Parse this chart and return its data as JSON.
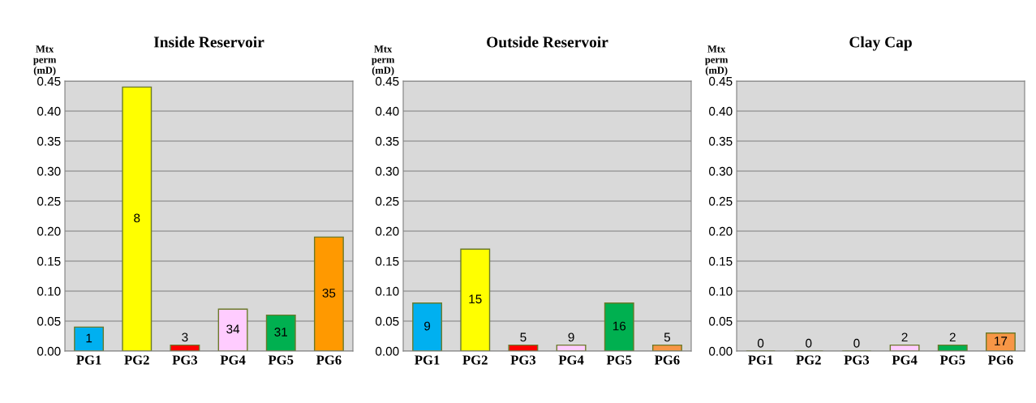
{
  "chart_data": [
    {
      "type": "bar",
      "title": "Inside Reservoir",
      "ylabel": "Mtx\nperm\n(mD)",
      "categories": [
        "PG1",
        "PG2",
        "PG3",
        "PG4",
        "PG5",
        "PG6"
      ],
      "values": [
        0.04,
        0.44,
        0.01,
        0.07,
        0.06,
        0.19
      ],
      "colors": [
        "#00b0f0",
        "#ffff00",
        "#ff0000",
        "#ffccff",
        "#00b050",
        "#ff9900"
      ],
      "annotations": [
        {
          "text": "1",
          "x": "PG1",
          "y": 0.04
        },
        "8",
        {
          "text": "3",
          "x": "PG3",
          "y": 0.01
        },
        {
          "text": "34",
          "x": "PG4",
          "y": 0.07
        },
        {
          "text": "31",
          "x": "PG5",
          "y": 0.06
        },
        "35"
      ],
      "ylim": [
        0,
        0.45
      ],
      "yticks": [
        {
          "value": 0,
          "label": "0.00"
        },
        {
          "value": 0.05,
          "label": "0.05"
        },
        {
          "value": 0.1,
          "label": "0.10"
        },
        {
          "value": 0.15,
          "label": "0.15"
        },
        {
          "value": 0.2,
          "label": "0.20"
        },
        {
          "value": 0.25,
          "label": "0.25"
        },
        {
          "value": 0.3,
          "label": "0.30"
        },
        {
          "value": 0.35,
          "label": "0.35"
        },
        {
          "value": 0.4,
          "label": "0.40"
        },
        {
          "value": 0.45,
          "label": "0.45"
        }
      ],
      "grid": "y"
    },
    {
      "type": "bar",
      "title": "Outside Reservoir",
      "ylabel": "Mtx\nperm\n(mD)",
      "categories": [
        "PG1",
        "PG2",
        "PG3",
        "PG4",
        "PG5",
        "PG6"
      ],
      "values": [
        0.08,
        0.17,
        0.01,
        0.01,
        0.08,
        0.01
      ],
      "colors": [
        "#00b0f0",
        "#ffff00",
        "#ff0000",
        "#ffccff",
        "#00b050",
        "#f79646"
      ],
      "annotations": [
        {
          "text": "9",
          "x": "PG1",
          "y": 0.08
        },
        "15",
        {
          "text": "5",
          "x": "PG3",
          "y": 0.01
        },
        {
          "text": "9",
          "x": "PG4",
          "y": 0.01
        },
        {
          "text": "16",
          "x": "PG5",
          "y": 0.08
        },
        {
          "text": "5",
          "x": "PG6",
          "y": 0.01
        }
      ],
      "ylim": [
        0,
        0.45
      ],
      "yticks": [
        {
          "value": 0,
          "label": "0.00"
        },
        {
          "value": 0.05,
          "label": "0.05"
        },
        {
          "value": 0.1,
          "label": "0.10"
        },
        {
          "value": 0.15,
          "label": "0.15"
        },
        {
          "value": 0.2,
          "label": "0.20"
        },
        {
          "value": 0.25,
          "label": "0.25"
        },
        {
          "value": 0.3,
          "label": "0.30"
        },
        {
          "value": 0.35,
          "label": "0.35"
        },
        {
          "value": 0.4,
          "label": "0.40"
        },
        {
          "value": 0.45,
          "label": "0.45"
        }
      ],
      "grid": "y"
    },
    {
      "type": "bar",
      "title": "Clay Cap",
      "ylabel": "Mtx\nperm\n(mD)",
      "categories": [
        "PG1",
        "PG2",
        "PG3",
        "PG4",
        "PG5",
        "PG6"
      ],
      "values": [
        0,
        0,
        0,
        0.01,
        0.01,
        0.03
      ],
      "colors": [
        "#00b0f0",
        "#ffff00",
        "#ff0000",
        "#ffccff",
        "#00b050",
        "#f79646"
      ],
      "annotations": [
        {
          "text": "0",
          "x": "PG1",
          "y": 0
        },
        {
          "text": "0",
          "x": "PG2",
          "y": 0
        },
        {
          "text": "0",
          "x": "PG3",
          "y": 0
        },
        {
          "text": "2",
          "x": "PG4",
          "y": 0.01
        },
        {
          "text": "2",
          "x": "PG5",
          "y": 0.01
        },
        {
          "text": "17",
          "x": "PG6",
          "y": 0.03
        }
      ],
      "ylim": [
        0,
        0.45
      ],
      "yticks": [
        {
          "value": 0,
          "label": "0.00"
        },
        {
          "value": 0.05,
          "label": "0.05"
        },
        {
          "value": 0.1,
          "label": "0.10"
        },
        {
          "value": 0.15,
          "label": "0.15"
        },
        {
          "value": 0.2,
          "label": "0.20"
        },
        {
          "value": 0.25,
          "label": "0.25"
        },
        {
          "value": 0.3,
          "label": "0.30"
        },
        {
          "value": 0.35,
          "label": "0.35"
        },
        {
          "value": 0.4,
          "label": "0.40"
        },
        {
          "value": 0.45,
          "label": "0.45"
        }
      ],
      "grid": "y"
    }
  ]
}
